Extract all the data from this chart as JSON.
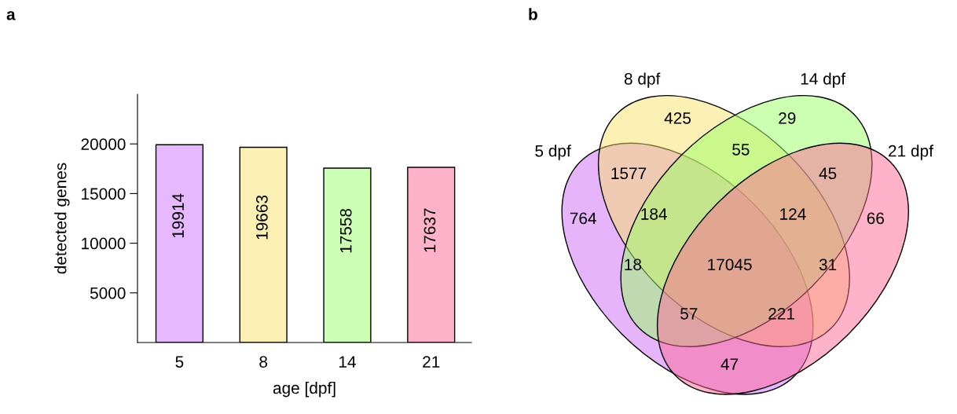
{
  "chart_data": [
    {
      "type": "bar",
      "title": "a",
      "xlabel": "age [dpf]",
      "ylabel": "detected genes",
      "categories": [
        "5",
        "8",
        "14",
        "21"
      ],
      "values": [
        19914,
        19663,
        17558,
        17637
      ],
      "colors": [
        "#e6b8ff",
        "#fdf0b5",
        "#ccffb3",
        "#ffb3cb"
      ],
      "ylim": [
        0,
        25000
      ],
      "yticks": [
        5000,
        10000,
        15000,
        20000
      ],
      "data_labels": true,
      "grid": false,
      "legend": false
    },
    {
      "type": "other",
      "title": "b",
      "categories": [
        "5 dpf",
        "8 dpf",
        "14 dpf",
        "21 dpf"
      ],
      "colors": [
        "#cb69f7",
        "#fbe16b",
        "#99ff65",
        "#fd6797"
      ],
      "annotations": [
        "425",
        "29",
        "1577",
        "55",
        "45",
        "764",
        "184",
        "124",
        "66",
        "18",
        "17045",
        "31",
        "57",
        "221",
        "47"
      ]
    }
  ]
}
